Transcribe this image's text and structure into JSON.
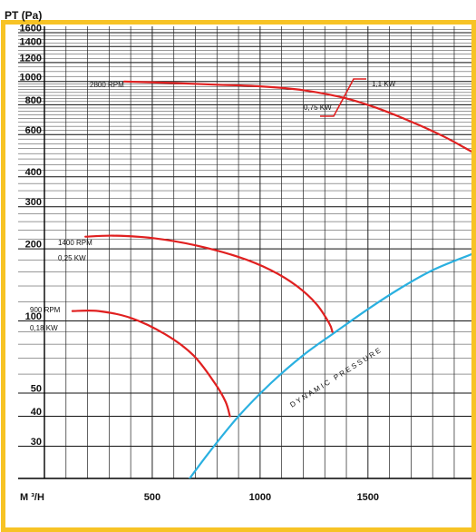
{
  "chart_data": {
    "type": "line",
    "ylabel": "PT (Pa)",
    "xlabel": "M ³/H",
    "y_scale": "log",
    "ylim": [
      22,
      1700
    ],
    "xlim": [
      0,
      1980
    ],
    "grid": true,
    "x_ticks": [
      {
        "value": 500,
        "label": "500"
      },
      {
        "value": 1000,
        "label": "1000"
      },
      {
        "value": 1500,
        "label": "1500"
      }
    ],
    "y_ticks": [
      {
        "value": 1600,
        "label": "1600"
      },
      {
        "value": 1400,
        "label": "1400"
      },
      {
        "value": 1200,
        "label": "1200"
      },
      {
        "value": 1000,
        "label": "1000"
      },
      {
        "value": 800,
        "label": "800"
      },
      {
        "value": 600,
        "label": "600"
      },
      {
        "value": 400,
        "label": "400"
      },
      {
        "value": 300,
        "label": "300"
      },
      {
        "value": 200,
        "label": "200"
      },
      {
        "value": 100,
        "label": "100"
      },
      {
        "value": 50,
        "label": "50"
      },
      {
        "value": 40,
        "label": "40"
      },
      {
        "value": 30,
        "label": "30"
      }
    ],
    "series": [
      {
        "name": "2800 RPM",
        "color": "#e02020",
        "points": [
          [
            370,
            1000
          ],
          [
            600,
            985
          ],
          [
            800,
            970
          ],
          [
            1000,
            955
          ],
          [
            1200,
            920
          ],
          [
            1400,
            850
          ],
          [
            1550,
            770
          ],
          [
            1700,
            680
          ],
          [
            1850,
            590
          ],
          [
            1980,
            510
          ]
        ]
      },
      {
        "name": "1400 RPM",
        "color": "#e02020",
        "points": [
          [
            190,
            225
          ],
          [
            320,
            227
          ],
          [
            500,
            222
          ],
          [
            700,
            207
          ],
          [
            900,
            185
          ],
          [
            1050,
            163
          ],
          [
            1170,
            140
          ],
          [
            1260,
            118
          ],
          [
            1320,
            98
          ],
          [
            1335,
            90
          ]
        ]
      },
      {
        "name": "900 RPM",
        "color": "#e02020",
        "points": [
          [
            130,
            110
          ],
          [
            250,
            110
          ],
          [
            400,
            103
          ],
          [
            560,
            88
          ],
          [
            690,
            72
          ],
          [
            790,
            55
          ],
          [
            840,
            46
          ],
          [
            860,
            40
          ]
        ]
      },
      {
        "name": "DYNAMIC PRESSURE",
        "color": "#2ab0e0",
        "points": [
          [
            640,
            20
          ],
          [
            760,
            28
          ],
          [
            900,
            40
          ],
          [
            1050,
            55
          ],
          [
            1200,
            72
          ],
          [
            1350,
            90
          ],
          [
            1500,
            112
          ],
          [
            1650,
            137
          ],
          [
            1800,
            163
          ],
          [
            1980,
            190
          ]
        ]
      }
    ],
    "labels": {
      "rpm_2800": "2800 RPM",
      "rpm_1400": "1400 RPM",
      "kw_1400": "0,25  KW",
      "rpm_900": "900 RPM",
      "kw_900": "0,18  KW",
      "kw_075": "0,75  KW",
      "kw_11": "1,1  KW",
      "dynamic_pressure": "DYNAMIC PRESSURE"
    },
    "colors": {
      "frame": "#f7c325",
      "rpm_curves": "#e02020",
      "dynamic_pressure": "#2ab0e0",
      "grid": "#222222"
    }
  }
}
